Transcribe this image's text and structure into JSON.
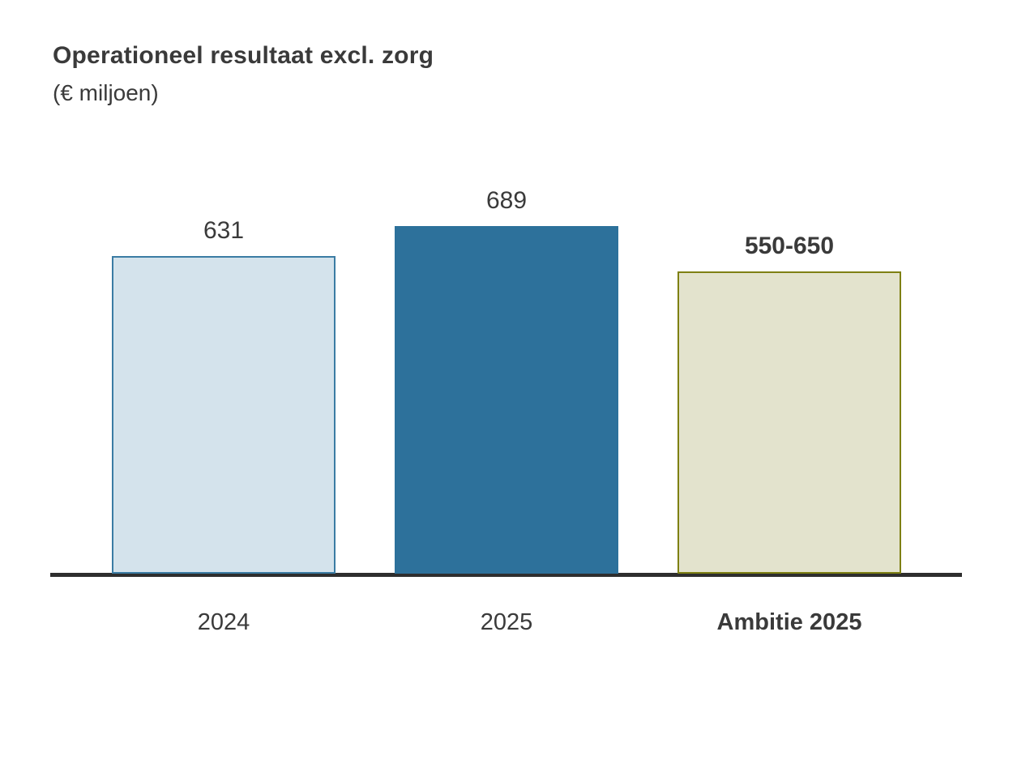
{
  "chart_data": {
    "type": "bar",
    "title": "Operationeel resultaat excl. zorg",
    "subtitle": "(€ miljoen)",
    "xlabel": "",
    "ylabel": "€ miljoen",
    "grid": false,
    "legend": "none",
    "axis_color": "#2e2e2e",
    "text_color": "#3a3a3a",
    "categories": [
      "2024",
      "2025",
      "Ambitie 2025"
    ],
    "values": [
      631,
      689,
      600
    ],
    "value_labels": [
      "631",
      "689",
      "550-650"
    ],
    "ambition_range": "550-650",
    "bars": [
      {
        "category": "2024",
        "value": 631,
        "label": "631",
        "label_bold": false,
        "category_bold": false,
        "fill": "#d4e3ec",
        "border": "#3b7ca4"
      },
      {
        "category": "2025",
        "value": 689,
        "label": "689",
        "label_bold": false,
        "category_bold": false,
        "fill": "#2d719b",
        "border": "#2d719b"
      },
      {
        "category": "Ambitie 2025",
        "value": 600,
        "label": "550-650",
        "label_bold": true,
        "category_bold": true,
        "fill": "#e3e3cd",
        "border": "#7e8013"
      }
    ]
  }
}
